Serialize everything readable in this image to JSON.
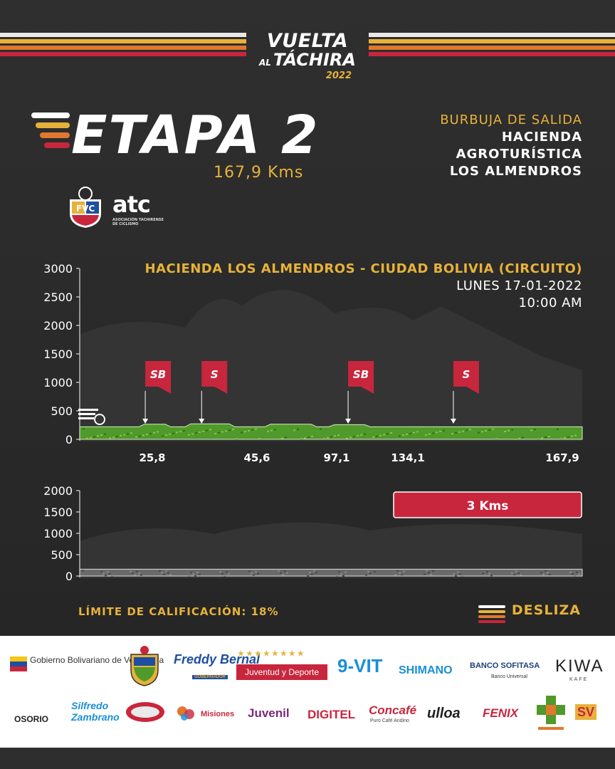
{
  "colors": {
    "yellow": "#e7b23a",
    "red": "#c8263d",
    "orange": "#e0782e",
    "white": "#ffffff",
    "background": "#2e2e2e",
    "terrain": "#4f9a2a"
  },
  "brand": {
    "line1": "VUELTA",
    "line2_small": "AL",
    "line2": "TÁCHIRA",
    "year": "2022"
  },
  "stage": {
    "title": "ETAPA 2",
    "distance": "167,9 Kms"
  },
  "burbuja": {
    "heading": "BURBUJA DE SALIDA",
    "lines": [
      "HACIENDA",
      "AGROTURÍSTICA",
      "LOS ALMENDROS"
    ]
  },
  "logos": {
    "atc": "atc",
    "atc_sub": "ASOCIACIÓN TACHIRENSE DE CICLISMO"
  },
  "route": {
    "title": "HACIENDA LOS ALMENDROS - CIUDAD BOLIVIA (CIRCUITO)",
    "date": "LUNES 17-01-2022",
    "time": "10:00 AM"
  },
  "chart_data": [
    {
      "type": "area",
      "ylim": [
        0,
        3000
      ],
      "yticks": [
        "3000",
        "2500",
        "2000",
        "1500",
        "1000",
        "500",
        "0"
      ],
      "xlim": [
        0,
        167.9
      ],
      "x_labels": [
        "25,8",
        "45,6",
        "97,1",
        "134,1",
        "167,9"
      ],
      "x": [
        0,
        25.8,
        45.6,
        97.1,
        134.1,
        167.9
      ],
      "markers": [
        {
          "label": "SB",
          "km": 25.8
        },
        {
          "label": "S",
          "km": 45.6
        },
        {
          "label": "SB",
          "km": 97.1
        },
        {
          "label": "S",
          "km": 134.1
        }
      ]
    },
    {
      "type": "area",
      "ylim": [
        0,
        2000
      ],
      "yticks": [
        "2000",
        "1500",
        "1000",
        "500",
        "0"
      ],
      "badge": "3 Kms"
    }
  ],
  "footer": {
    "limite": "LÍMITE DE CALIFICACIÓN: 18%",
    "desliza": "DESLIZA"
  },
  "sponsors": {
    "row1": [
      "Gobierno Bolivariano de Venezuela",
      "Freddy Bernal",
      "GOBERNADOR",
      "Juventud y Deporte",
      "9-VIT",
      "SHIMANO",
      "BANCO SOFITASA",
      "Banco Universal",
      "KIWA",
      "KAFE"
    ],
    "row2": [
      "OSORIO",
      "Silfredo Zambrano",
      "Misiones",
      "Juvenil",
      "DIGITEL",
      "Concafé",
      "Puro Café Andino",
      "ulloa",
      "FENIX",
      "SV"
    ]
  }
}
